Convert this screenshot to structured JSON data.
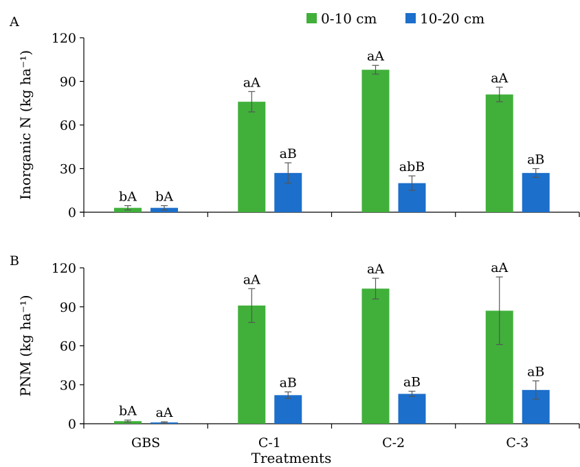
{
  "colors": {
    "series0": "#40b03a",
    "series1": "#1c6fcb",
    "axis": "#000000",
    "error_bar": "#555555"
  },
  "legend": [
    {
      "label": "0-10 cm",
      "color": "#40b03a"
    },
    {
      "label": "10-20 cm",
      "color": "#1c6fcb"
    }
  ],
  "xlabel": "Treatments",
  "chart_data": [
    {
      "type": "bar",
      "panel": "A",
      "ylabel": "Inorganic N (kg ha⁻¹)",
      "ylim": [
        0,
        120
      ],
      "yticks": [
        0,
        30,
        60,
        90,
        120
      ],
      "categories": [
        "GBS",
        "C-1",
        "C-2",
        "C-3"
      ],
      "show_category_labels": false,
      "series": [
        {
          "name": "0-10 cm",
          "values": [
            3,
            76,
            98,
            81
          ],
          "errors": [
            1.5,
            7,
            3,
            5
          ],
          "labels": [
            "bA",
            "aA",
            "aA",
            "aA"
          ]
        },
        {
          "name": "10-20 cm",
          "values": [
            3,
            27,
            20,
            27
          ],
          "errors": [
            1.5,
            7,
            5,
            3
          ],
          "labels": [
            "bA",
            "aB",
            "abB",
            "aB"
          ]
        }
      ]
    },
    {
      "type": "bar",
      "panel": "B",
      "ylabel": "PNM (kg ha⁻¹)",
      "ylim": [
        0,
        120
      ],
      "yticks": [
        0,
        30,
        60,
        90,
        120
      ],
      "categories": [
        "GBS",
        "C-1",
        "C-2",
        "C-3"
      ],
      "show_category_labels": true,
      "series": [
        {
          "name": "0-10 cm",
          "values": [
            2,
            91,
            104,
            87
          ],
          "errors": [
            0.8,
            13,
            8,
            26
          ],
          "labels": [
            "bA",
            "aA",
            "aA",
            "aA"
          ]
        },
        {
          "name": "10-20 cm",
          "values": [
            1,
            22,
            23,
            26
          ],
          "errors": [
            0.5,
            2.5,
            2,
            7
          ],
          "labels": [
            "aA",
            "aB",
            "aB",
            "aB"
          ]
        }
      ]
    }
  ]
}
